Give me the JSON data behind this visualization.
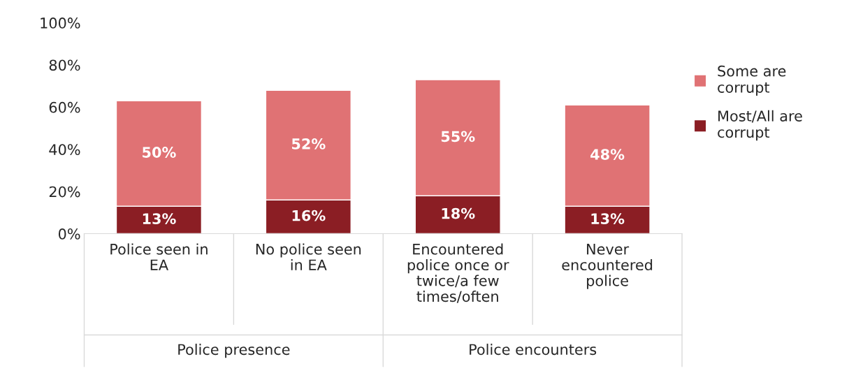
{
  "chart_data": {
    "type": "bar",
    "stacked": true,
    "categories": [
      "Police seen in\nEA",
      "No police seen\nin EA",
      "Encountered\npolice once or\ntwice/a few\ntimes/often",
      "Never\nencountered\npolice"
    ],
    "series": [
      {
        "name": "Most/All are\ncorrupt",
        "color": "#8b1e24",
        "values": [
          13,
          16,
          18,
          13
        ],
        "value_labels": [
          "13%",
          "16%",
          "18%",
          "13%"
        ]
      },
      {
        "name": "Some are\ncorrupt",
        "color": "#e07274",
        "values": [
          50,
          52,
          55,
          48
        ],
        "value_labels": [
          "50%",
          "52%",
          "55%",
          "48%"
        ]
      }
    ],
    "ylim": [
      0,
      100
    ],
    "yticks": [
      {
        "value": 0,
        "label": "0%"
      },
      {
        "value": 20,
        "label": "20%"
      },
      {
        "value": 40,
        "label": "40%"
      },
      {
        "value": 60,
        "label": "60%"
      },
      {
        "value": 80,
        "label": "80%"
      },
      {
        "value": 100,
        "label": "100%"
      }
    ],
    "annotations": [
      "Police presence",
      "Police encounters"
    ],
    "legend": "right",
    "grid": false
  }
}
